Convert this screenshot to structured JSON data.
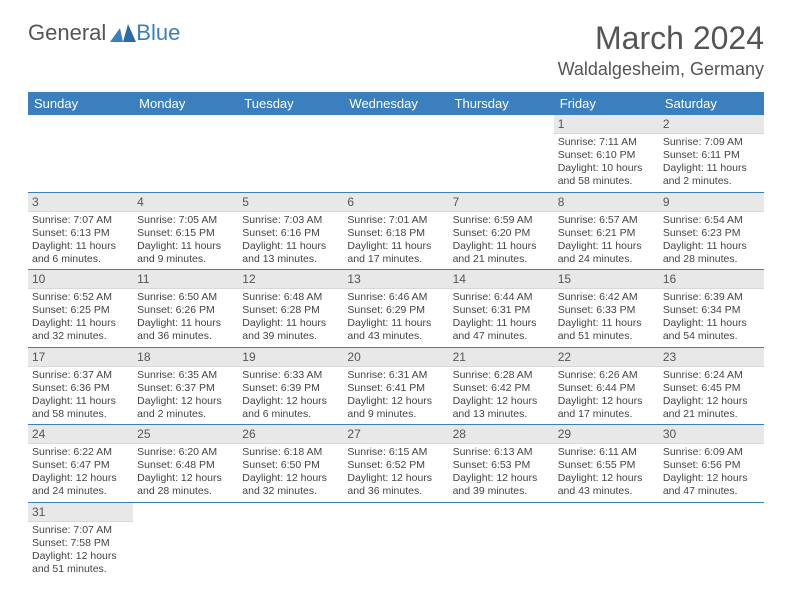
{
  "logo": {
    "text1": "General",
    "text2": "Blue"
  },
  "month_title": "March 2024",
  "location": "Waldalgesheim, Germany",
  "theme": {
    "header_bg": "#3b7fbf",
    "header_fg": "#ffffff",
    "daynum_bg": "#e8e8e8",
    "row_divider": "#3b7fbf",
    "text_color": "#444444"
  },
  "weekdays": [
    "Sunday",
    "Monday",
    "Tuesday",
    "Wednesday",
    "Thursday",
    "Friday",
    "Saturday"
  ],
  "weeks": [
    [
      null,
      null,
      null,
      null,
      null,
      {
        "n": "1",
        "sunrise": "7:11 AM",
        "sunset": "6:10 PM",
        "daylight": "10 hours and 58 minutes."
      },
      {
        "n": "2",
        "sunrise": "7:09 AM",
        "sunset": "6:11 PM",
        "daylight": "11 hours and 2 minutes."
      }
    ],
    [
      {
        "n": "3",
        "sunrise": "7:07 AM",
        "sunset": "6:13 PM",
        "daylight": "11 hours and 6 minutes."
      },
      {
        "n": "4",
        "sunrise": "7:05 AM",
        "sunset": "6:15 PM",
        "daylight": "11 hours and 9 minutes."
      },
      {
        "n": "5",
        "sunrise": "7:03 AM",
        "sunset": "6:16 PM",
        "daylight": "11 hours and 13 minutes."
      },
      {
        "n": "6",
        "sunrise": "7:01 AM",
        "sunset": "6:18 PM",
        "daylight": "11 hours and 17 minutes."
      },
      {
        "n": "7",
        "sunrise": "6:59 AM",
        "sunset": "6:20 PM",
        "daylight": "11 hours and 21 minutes."
      },
      {
        "n": "8",
        "sunrise": "6:57 AM",
        "sunset": "6:21 PM",
        "daylight": "11 hours and 24 minutes."
      },
      {
        "n": "9",
        "sunrise": "6:54 AM",
        "sunset": "6:23 PM",
        "daylight": "11 hours and 28 minutes."
      }
    ],
    [
      {
        "n": "10",
        "sunrise": "6:52 AM",
        "sunset": "6:25 PM",
        "daylight": "11 hours and 32 minutes."
      },
      {
        "n": "11",
        "sunrise": "6:50 AM",
        "sunset": "6:26 PM",
        "daylight": "11 hours and 36 minutes."
      },
      {
        "n": "12",
        "sunrise": "6:48 AM",
        "sunset": "6:28 PM",
        "daylight": "11 hours and 39 minutes."
      },
      {
        "n": "13",
        "sunrise": "6:46 AM",
        "sunset": "6:29 PM",
        "daylight": "11 hours and 43 minutes."
      },
      {
        "n": "14",
        "sunrise": "6:44 AM",
        "sunset": "6:31 PM",
        "daylight": "11 hours and 47 minutes."
      },
      {
        "n": "15",
        "sunrise": "6:42 AM",
        "sunset": "6:33 PM",
        "daylight": "11 hours and 51 minutes."
      },
      {
        "n": "16",
        "sunrise": "6:39 AM",
        "sunset": "6:34 PM",
        "daylight": "11 hours and 54 minutes."
      }
    ],
    [
      {
        "n": "17",
        "sunrise": "6:37 AM",
        "sunset": "6:36 PM",
        "daylight": "11 hours and 58 minutes."
      },
      {
        "n": "18",
        "sunrise": "6:35 AM",
        "sunset": "6:37 PM",
        "daylight": "12 hours and 2 minutes."
      },
      {
        "n": "19",
        "sunrise": "6:33 AM",
        "sunset": "6:39 PM",
        "daylight": "12 hours and 6 minutes."
      },
      {
        "n": "20",
        "sunrise": "6:31 AM",
        "sunset": "6:41 PM",
        "daylight": "12 hours and 9 minutes."
      },
      {
        "n": "21",
        "sunrise": "6:28 AM",
        "sunset": "6:42 PM",
        "daylight": "12 hours and 13 minutes."
      },
      {
        "n": "22",
        "sunrise": "6:26 AM",
        "sunset": "6:44 PM",
        "daylight": "12 hours and 17 minutes."
      },
      {
        "n": "23",
        "sunrise": "6:24 AM",
        "sunset": "6:45 PM",
        "daylight": "12 hours and 21 minutes."
      }
    ],
    [
      {
        "n": "24",
        "sunrise": "6:22 AM",
        "sunset": "6:47 PM",
        "daylight": "12 hours and 24 minutes."
      },
      {
        "n": "25",
        "sunrise": "6:20 AM",
        "sunset": "6:48 PM",
        "daylight": "12 hours and 28 minutes."
      },
      {
        "n": "26",
        "sunrise": "6:18 AM",
        "sunset": "6:50 PM",
        "daylight": "12 hours and 32 minutes."
      },
      {
        "n": "27",
        "sunrise": "6:15 AM",
        "sunset": "6:52 PM",
        "daylight": "12 hours and 36 minutes."
      },
      {
        "n": "28",
        "sunrise": "6:13 AM",
        "sunset": "6:53 PM",
        "daylight": "12 hours and 39 minutes."
      },
      {
        "n": "29",
        "sunrise": "6:11 AM",
        "sunset": "6:55 PM",
        "daylight": "12 hours and 43 minutes."
      },
      {
        "n": "30",
        "sunrise": "6:09 AM",
        "sunset": "6:56 PM",
        "daylight": "12 hours and 47 minutes."
      }
    ],
    [
      {
        "n": "31",
        "sunrise": "7:07 AM",
        "sunset": "7:58 PM",
        "daylight": "12 hours and 51 minutes."
      },
      null,
      null,
      null,
      null,
      null,
      null
    ]
  ],
  "labels": {
    "sunrise": "Sunrise: ",
    "sunset": "Sunset: ",
    "daylight": "Daylight: "
  }
}
